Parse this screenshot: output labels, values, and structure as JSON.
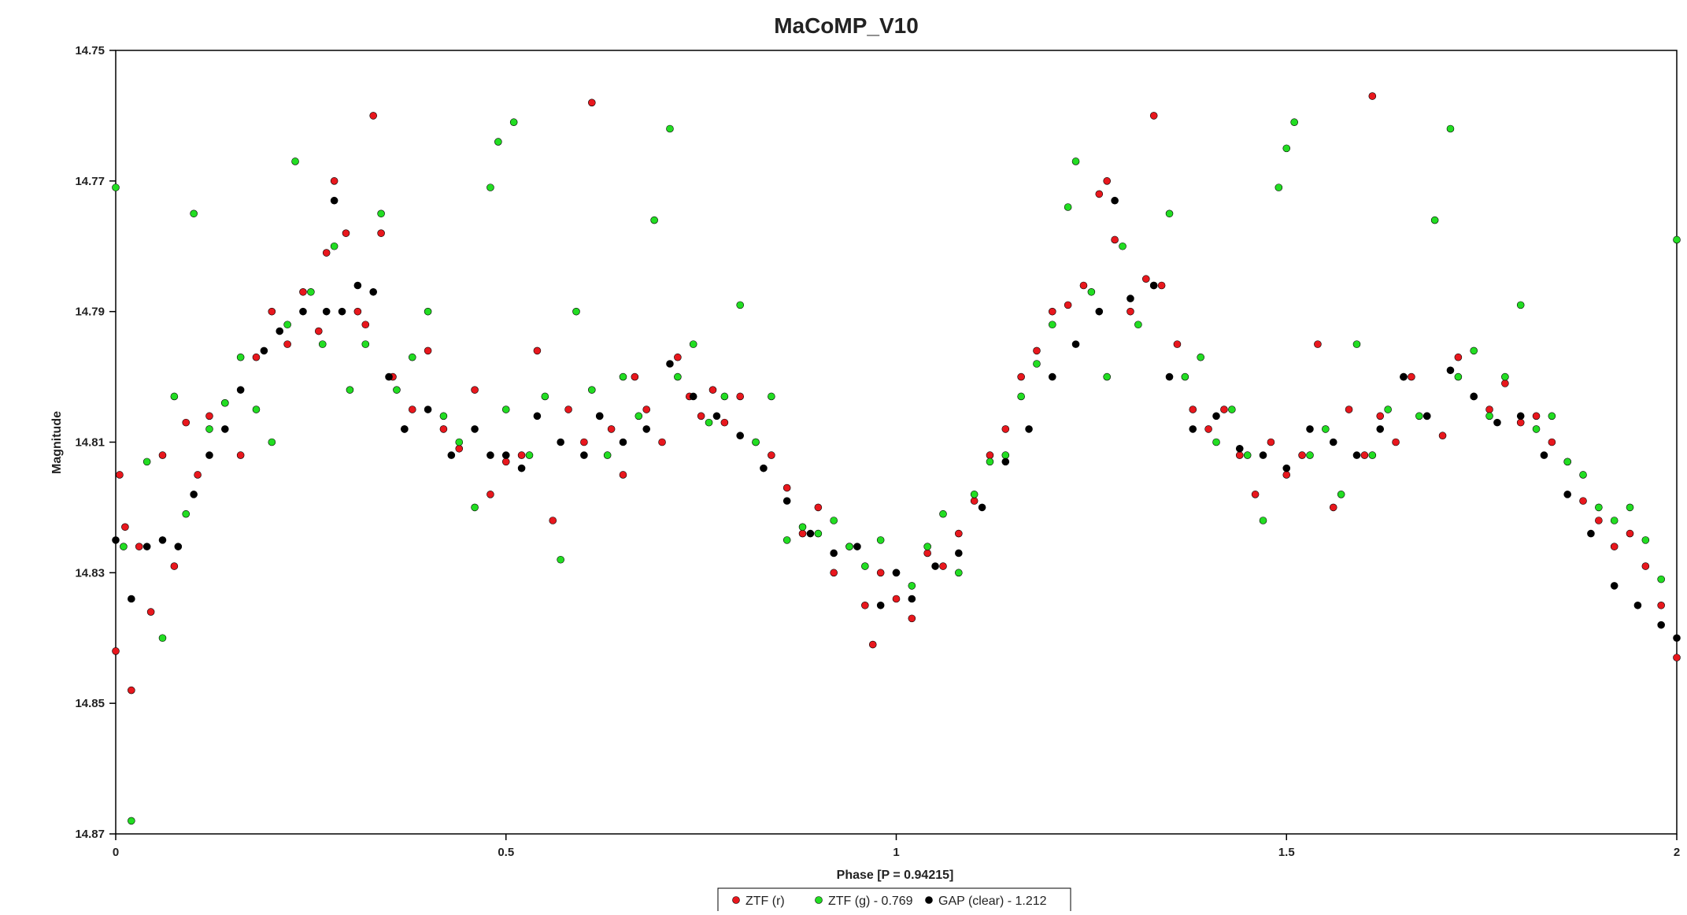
{
  "chart_data": {
    "type": "scatter",
    "title": "MaCoMP_V10",
    "xlabel": "Phase [P = 0.94215]",
    "ylabel": "Magnitude",
    "xlim": [
      0,
      2
    ],
    "ylim": [
      14.75,
      14.87
    ],
    "y_inverted": true,
    "xticks": [
      "0",
      "0.5",
      "1",
      "1.5",
      "2"
    ],
    "xtick_values": [
      0,
      0.5,
      1,
      1.5,
      2
    ],
    "yticks": [
      "14.75",
      "14.77",
      "14.79",
      "14.81",
      "14.83",
      "14.85",
      "14.87"
    ],
    "ytick_values": [
      14.75,
      14.77,
      14.79,
      14.81,
      14.83,
      14.85,
      14.87
    ],
    "grid": false,
    "legend_position": "bottom-center",
    "series": [
      {
        "name": "ZTF (r)",
        "color": "#e8171d",
        "points": [
          [
            0.0,
            14.842
          ],
          [
            0.005,
            14.815
          ],
          [
            0.012,
            14.823
          ],
          [
            0.02,
            14.848
          ],
          [
            0.03,
            14.826
          ],
          [
            0.045,
            14.836
          ],
          [
            0.06,
            14.812
          ],
          [
            0.075,
            14.829
          ],
          [
            0.09,
            14.807
          ],
          [
            0.105,
            14.815
          ],
          [
            0.12,
            14.806
          ],
          [
            0.14,
            14.804
          ],
          [
            0.16,
            14.812
          ],
          [
            0.18,
            14.797
          ],
          [
            0.2,
            14.79
          ],
          [
            0.22,
            14.795
          ],
          [
            0.24,
            14.787
          ],
          [
            0.26,
            14.793
          ],
          [
            0.27,
            14.781
          ],
          [
            0.28,
            14.77
          ],
          [
            0.295,
            14.778
          ],
          [
            0.31,
            14.79
          ],
          [
            0.32,
            14.792
          ],
          [
            0.33,
            14.76
          ],
          [
            0.34,
            14.778
          ],
          [
            0.355,
            14.8
          ],
          [
            0.37,
            14.808
          ],
          [
            0.38,
            14.805
          ],
          [
            0.4,
            14.796
          ],
          [
            0.42,
            14.808
          ],
          [
            0.44,
            14.811
          ],
          [
            0.46,
            14.802
          ],
          [
            0.48,
            14.818
          ],
          [
            0.5,
            14.813
          ],
          [
            0.52,
            14.812
          ],
          [
            0.54,
            14.796
          ],
          [
            0.56,
            14.822
          ],
          [
            0.58,
            14.805
          ],
          [
            0.6,
            14.81
          ],
          [
            0.61,
            14.758
          ],
          [
            0.62,
            14.806
          ],
          [
            0.635,
            14.808
          ],
          [
            0.65,
            14.815
          ],
          [
            0.665,
            14.8
          ],
          [
            0.68,
            14.805
          ],
          [
            0.7,
            14.81
          ],
          [
            0.72,
            14.797
          ],
          [
            0.735,
            14.803
          ],
          [
            0.75,
            14.806
          ],
          [
            0.765,
            14.802
          ],
          [
            0.78,
            14.807
          ],
          [
            0.8,
            14.803
          ],
          [
            0.82,
            14.81
          ],
          [
            0.84,
            14.812
          ],
          [
            0.86,
            14.817
          ],
          [
            0.88,
            14.824
          ],
          [
            0.9,
            14.82
          ],
          [
            0.92,
            14.83
          ],
          [
            0.94,
            14.826
          ],
          [
            0.96,
            14.835
          ],
          [
            0.97,
            14.841
          ],
          [
            0.98,
            14.83
          ],
          [
            1.0,
            14.834
          ],
          [
            1.02,
            14.837
          ],
          [
            1.04,
            14.827
          ],
          [
            1.06,
            14.829
          ],
          [
            1.08,
            14.824
          ],
          [
            1.1,
            14.819
          ],
          [
            1.12,
            14.812
          ],
          [
            1.14,
            14.808
          ],
          [
            1.16,
            14.8
          ],
          [
            1.18,
            14.796
          ],
          [
            1.2,
            14.79
          ],
          [
            1.22,
            14.789
          ],
          [
            1.24,
            14.786
          ],
          [
            1.26,
            14.772
          ],
          [
            1.27,
            14.77
          ],
          [
            1.28,
            14.779
          ],
          [
            1.3,
            14.79
          ],
          [
            1.32,
            14.785
          ],
          [
            1.33,
            14.76
          ],
          [
            1.34,
            14.786
          ],
          [
            1.36,
            14.795
          ],
          [
            1.38,
            14.805
          ],
          [
            1.4,
            14.808
          ],
          [
            1.42,
            14.805
          ],
          [
            1.44,
            14.812
          ],
          [
            1.46,
            14.818
          ],
          [
            1.48,
            14.81
          ],
          [
            1.5,
            14.815
          ],
          [
            1.52,
            14.812
          ],
          [
            1.54,
            14.795
          ],
          [
            1.56,
            14.82
          ],
          [
            1.58,
            14.805
          ],
          [
            1.6,
            14.812
          ],
          [
            1.61,
            14.757
          ],
          [
            1.62,
            14.806
          ],
          [
            1.64,
            14.81
          ],
          [
            1.66,
            14.8
          ],
          [
            1.68,
            14.806
          ],
          [
            1.7,
            14.809
          ],
          [
            1.72,
            14.797
          ],
          [
            1.74,
            14.803
          ],
          [
            1.76,
            14.805
          ],
          [
            1.78,
            14.801
          ],
          [
            1.8,
            14.807
          ],
          [
            1.82,
            14.806
          ],
          [
            1.84,
            14.81
          ],
          [
            1.86,
            14.813
          ],
          [
            1.88,
            14.819
          ],
          [
            1.9,
            14.822
          ],
          [
            1.92,
            14.826
          ],
          [
            1.94,
            14.824
          ],
          [
            1.96,
            14.829
          ],
          [
            1.98,
            14.835
          ],
          [
            2.0,
            14.843
          ]
        ]
      },
      {
        "name": "ZTF (g) - 0.769",
        "color": "#22dd22",
        "points": [
          [
            0.0,
            14.771
          ],
          [
            0.01,
            14.826
          ],
          [
            0.02,
            14.868
          ],
          [
            0.04,
            14.813
          ],
          [
            0.06,
            14.84
          ],
          [
            0.075,
            14.803
          ],
          [
            0.09,
            14.821
          ],
          [
            0.1,
            14.775
          ],
          [
            0.12,
            14.808
          ],
          [
            0.14,
            14.804
          ],
          [
            0.16,
            14.797
          ],
          [
            0.18,
            14.805
          ],
          [
            0.2,
            14.81
          ],
          [
            0.22,
            14.792
          ],
          [
            0.23,
            14.767
          ],
          [
            0.25,
            14.787
          ],
          [
            0.265,
            14.795
          ],
          [
            0.28,
            14.78
          ],
          [
            0.3,
            14.802
          ],
          [
            0.32,
            14.795
          ],
          [
            0.34,
            14.775
          ],
          [
            0.36,
            14.802
          ],
          [
            0.38,
            14.797
          ],
          [
            0.4,
            14.79
          ],
          [
            0.42,
            14.806
          ],
          [
            0.44,
            14.81
          ],
          [
            0.46,
            14.82
          ],
          [
            0.48,
            14.771
          ],
          [
            0.49,
            14.764
          ],
          [
            0.5,
            14.805
          ],
          [
            0.51,
            14.761
          ],
          [
            0.53,
            14.812
          ],
          [
            0.55,
            14.803
          ],
          [
            0.57,
            14.828
          ],
          [
            0.59,
            14.79
          ],
          [
            0.61,
            14.802
          ],
          [
            0.63,
            14.812
          ],
          [
            0.65,
            14.8
          ],
          [
            0.67,
            14.806
          ],
          [
            0.69,
            14.776
          ],
          [
            0.71,
            14.762
          ],
          [
            0.72,
            14.8
          ],
          [
            0.74,
            14.795
          ],
          [
            0.76,
            14.807
          ],
          [
            0.78,
            14.803
          ],
          [
            0.8,
            14.789
          ],
          [
            0.82,
            14.81
          ],
          [
            0.84,
            14.803
          ],
          [
            0.86,
            14.825
          ],
          [
            0.88,
            14.823
          ],
          [
            0.9,
            14.824
          ],
          [
            0.92,
            14.822
          ],
          [
            0.94,
            14.826
          ],
          [
            0.96,
            14.829
          ],
          [
            0.98,
            14.825
          ],
          [
            1.0,
            14.83
          ],
          [
            1.02,
            14.832
          ],
          [
            1.04,
            14.826
          ],
          [
            1.06,
            14.821
          ],
          [
            1.08,
            14.83
          ],
          [
            1.1,
            14.818
          ],
          [
            1.12,
            14.813
          ],
          [
            1.14,
            14.812
          ],
          [
            1.16,
            14.803
          ],
          [
            1.18,
            14.798
          ],
          [
            1.2,
            14.792
          ],
          [
            1.22,
            14.774
          ],
          [
            1.23,
            14.767
          ],
          [
            1.25,
            14.787
          ],
          [
            1.27,
            14.8
          ],
          [
            1.29,
            14.78
          ],
          [
            1.31,
            14.792
          ],
          [
            1.33,
            14.786
          ],
          [
            1.35,
            14.775
          ],
          [
            1.37,
            14.8
          ],
          [
            1.39,
            14.797
          ],
          [
            1.41,
            14.81
          ],
          [
            1.43,
            14.805
          ],
          [
            1.45,
            14.812
          ],
          [
            1.47,
            14.822
          ],
          [
            1.49,
            14.771
          ],
          [
            1.5,
            14.765
          ],
          [
            1.51,
            14.761
          ],
          [
            1.53,
            14.812
          ],
          [
            1.55,
            14.808
          ],
          [
            1.57,
            14.818
          ],
          [
            1.59,
            14.795
          ],
          [
            1.61,
            14.812
          ],
          [
            1.63,
            14.805
          ],
          [
            1.65,
            14.8
          ],
          [
            1.67,
            14.806
          ],
          [
            1.69,
            14.776
          ],
          [
            1.71,
            14.762
          ],
          [
            1.72,
            14.8
          ],
          [
            1.74,
            14.796
          ],
          [
            1.76,
            14.806
          ],
          [
            1.78,
            14.8
          ],
          [
            1.8,
            14.789
          ],
          [
            1.82,
            14.808
          ],
          [
            1.84,
            14.806
          ],
          [
            1.86,
            14.813
          ],
          [
            1.88,
            14.815
          ],
          [
            1.9,
            14.82
          ],
          [
            1.92,
            14.822
          ],
          [
            1.94,
            14.82
          ],
          [
            1.96,
            14.825
          ],
          [
            1.98,
            14.831
          ],
          [
            2.0,
            14.779
          ]
        ]
      },
      {
        "name": "GAP (clear) - 1.212",
        "color": "#000000",
        "points": [
          [
            0.0,
            14.825
          ],
          [
            0.02,
            14.834
          ],
          [
            0.04,
            14.826
          ],
          [
            0.06,
            14.825
          ],
          [
            0.08,
            14.826
          ],
          [
            0.1,
            14.818
          ],
          [
            0.12,
            14.812
          ],
          [
            0.14,
            14.808
          ],
          [
            0.16,
            14.802
          ],
          [
            0.19,
            14.796
          ],
          [
            0.21,
            14.793
          ],
          [
            0.24,
            14.79
          ],
          [
            0.27,
            14.79
          ],
          [
            0.28,
            14.773
          ],
          [
            0.29,
            14.79
          ],
          [
            0.31,
            14.786
          ],
          [
            0.33,
            14.787
          ],
          [
            0.35,
            14.8
          ],
          [
            0.37,
            14.808
          ],
          [
            0.4,
            14.805
          ],
          [
            0.43,
            14.812
          ],
          [
            0.46,
            14.808
          ],
          [
            0.48,
            14.812
          ],
          [
            0.5,
            14.812
          ],
          [
            0.52,
            14.814
          ],
          [
            0.54,
            14.806
          ],
          [
            0.57,
            14.81
          ],
          [
            0.6,
            14.812
          ],
          [
            0.62,
            14.806
          ],
          [
            0.65,
            14.81
          ],
          [
            0.68,
            14.808
          ],
          [
            0.71,
            14.798
          ],
          [
            0.74,
            14.803
          ],
          [
            0.77,
            14.806
          ],
          [
            0.8,
            14.809
          ],
          [
            0.83,
            14.814
          ],
          [
            0.86,
            14.819
          ],
          [
            0.89,
            14.824
          ],
          [
            0.92,
            14.827
          ],
          [
            0.95,
            14.826
          ],
          [
            0.98,
            14.835
          ],
          [
            1.0,
            14.83
          ],
          [
            1.02,
            14.834
          ],
          [
            1.05,
            14.829
          ],
          [
            1.08,
            14.827
          ],
          [
            1.11,
            14.82
          ],
          [
            1.14,
            14.813
          ],
          [
            1.17,
            14.808
          ],
          [
            1.2,
            14.8
          ],
          [
            1.23,
            14.795
          ],
          [
            1.26,
            14.79
          ],
          [
            1.28,
            14.773
          ],
          [
            1.3,
            14.788
          ],
          [
            1.33,
            14.786
          ],
          [
            1.35,
            14.8
          ],
          [
            1.38,
            14.808
          ],
          [
            1.41,
            14.806
          ],
          [
            1.44,
            14.811
          ],
          [
            1.47,
            14.812
          ],
          [
            1.5,
            14.814
          ],
          [
            1.53,
            14.808
          ],
          [
            1.56,
            14.81
          ],
          [
            1.59,
            14.812
          ],
          [
            1.62,
            14.808
          ],
          [
            1.65,
            14.8
          ],
          [
            1.68,
            14.806
          ],
          [
            1.71,
            14.799
          ],
          [
            1.74,
            14.803
          ],
          [
            1.77,
            14.807
          ],
          [
            1.8,
            14.806
          ],
          [
            1.83,
            14.812
          ],
          [
            1.86,
            14.818
          ],
          [
            1.89,
            14.824
          ],
          [
            1.92,
            14.832
          ],
          [
            1.95,
            14.835
          ],
          [
            1.98,
            14.838
          ],
          [
            2.0,
            14.84
          ]
        ]
      }
    ]
  }
}
